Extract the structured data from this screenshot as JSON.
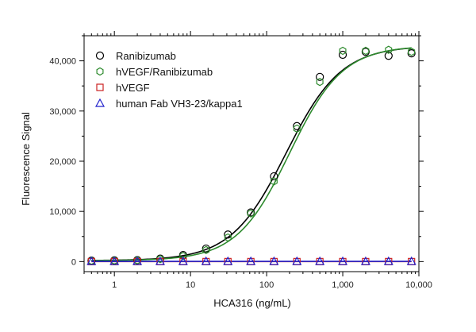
{
  "chart_data": {
    "type": "scatter",
    "xscale": "log",
    "xlabel": "HCA316 (ng/mL)",
    "ylabel": "Fluorescence Signal",
    "xlim": [
      0.4,
      10000
    ],
    "ylim": [
      -2000,
      45000
    ],
    "x_ticks": [
      {
        "value": 1,
        "label": "1"
      },
      {
        "value": 10,
        "label": "10"
      },
      {
        "value": 100,
        "label": "100"
      },
      {
        "value": 1000,
        "label": "1,000"
      },
      {
        "value": 10000,
        "label": "10,000"
      }
    ],
    "y_ticks": [
      {
        "value": 0,
        "label": "0"
      },
      {
        "value": 10000,
        "label": "10,000"
      },
      {
        "value": 20000,
        "label": "20,000"
      },
      {
        "value": 30000,
        "label": "30,000"
      },
      {
        "value": 40000,
        "label": "40,000"
      }
    ],
    "grid": false,
    "legend": "top-left",
    "x": [
      0.5,
      1,
      2,
      4,
      8,
      16,
      31,
      62,
      125,
      250,
      500,
      1000,
      2000,
      4000,
      8000
    ],
    "series": [
      {
        "name": "Ranibizumab",
        "marker": "circle",
        "color": "#000000",
        "values": [
          200,
          250,
          300,
          600,
          1300,
          2600,
          5400,
          9800,
          17000,
          27000,
          36800,
          41200,
          41800,
          41000,
          41500
        ],
        "fit": {
          "bottom": 200,
          "top": 43000,
          "ec50": 180,
          "hill": 1.2
        }
      },
      {
        "name": "hVEGF/Ranibizumab",
        "marker": "hexagon",
        "color": "#2e8b2e",
        "values": [
          150,
          200,
          250,
          500,
          1100,
          2300,
          4800,
          9600,
          16000,
          26500,
          35800,
          42000,
          42000,
          42200,
          41800
        ],
        "fit": {
          "bottom": 200,
          "top": 43000,
          "ec50": 200,
          "hill": 1.25
        }
      },
      {
        "name": "hVEGF",
        "marker": "square",
        "color": "#cc2222",
        "values": [
          0,
          0,
          0,
          0,
          0,
          0,
          0,
          0,
          0,
          0,
          0,
          0,
          0,
          0,
          0
        ]
      },
      {
        "name": "human Fab VH3-23/kappa1",
        "marker": "triangle",
        "color": "#2222cc",
        "values": [
          50,
          50,
          50,
          50,
          50,
          50,
          50,
          50,
          50,
          50,
          50,
          50,
          50,
          50,
          50
        ]
      }
    ]
  }
}
